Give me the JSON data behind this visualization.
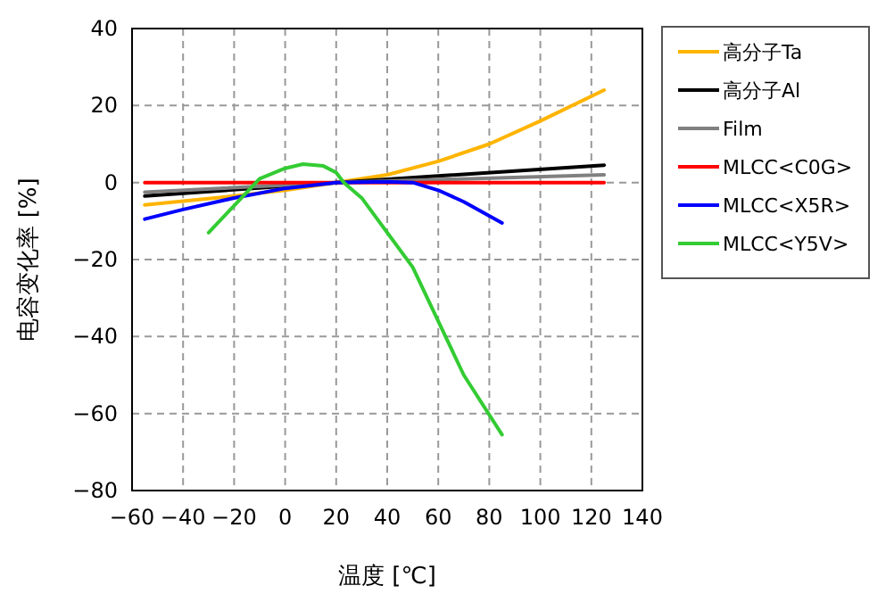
{
  "chart_data": {
    "type": "line",
    "xlabel": "温度 [℃]",
    "ylabel": "电容变化率 [%]",
    "xlim": [
      -60,
      140
    ],
    "xticks": [
      -60,
      -40,
      -20,
      0,
      20,
      40,
      60,
      80,
      100,
      120,
      140
    ],
    "ylim": [
      -80,
      40
    ],
    "yticks": [
      -80,
      -60,
      -40,
      -20,
      0,
      20,
      40
    ],
    "grid": true,
    "legend": "right",
    "line_style": "solid",
    "marker": "none",
    "series": [
      {
        "name": "高分子Ta",
        "color": "#ffb400",
        "x": [
          -55,
          -40,
          -20,
          0,
          20,
          40,
          60,
          80,
          100,
          125
        ],
        "values": [
          -5.8,
          -4.8,
          -3.5,
          -2.0,
          0,
          2.0,
          5.5,
          10,
          16,
          24
        ]
      },
      {
        "name": "高分子Al",
        "color": "#000000",
        "x": [
          -55,
          20,
          125
        ],
        "values": [
          -3.5,
          0,
          4.5
        ]
      },
      {
        "name": "Film",
        "color": "#808080",
        "x": [
          -55,
          20,
          125
        ],
        "values": [
          -2.5,
          0,
          2
        ]
      },
      {
        "name": "MLCC<C0G>",
        "color": "#ff0000",
        "x": [
          -55,
          20,
          125
        ],
        "values": [
          0,
          0,
          0
        ]
      },
      {
        "name": "MLCC<X5R>",
        "color": "#0000ff",
        "x": [
          -55,
          -40,
          -20,
          0,
          20,
          40,
          50,
          60,
          70,
          85
        ],
        "values": [
          -9.5,
          -7,
          -4,
          -1.5,
          0,
          0.2,
          0,
          -2,
          -5,
          -10.5
        ]
      },
      {
        "name": "MLCC<Y5V>",
        "color": "#33cc33",
        "x": [
          -30,
          -20,
          -10,
          0,
          7,
          15,
          20,
          23,
          30,
          40,
          50,
          60,
          70,
          85
        ],
        "values": [
          -13,
          -6,
          1,
          3.7,
          4.8,
          4.3,
          2.6,
          0,
          -4,
          -13,
          -22,
          -36,
          -50,
          -65.5
        ]
      }
    ]
  }
}
